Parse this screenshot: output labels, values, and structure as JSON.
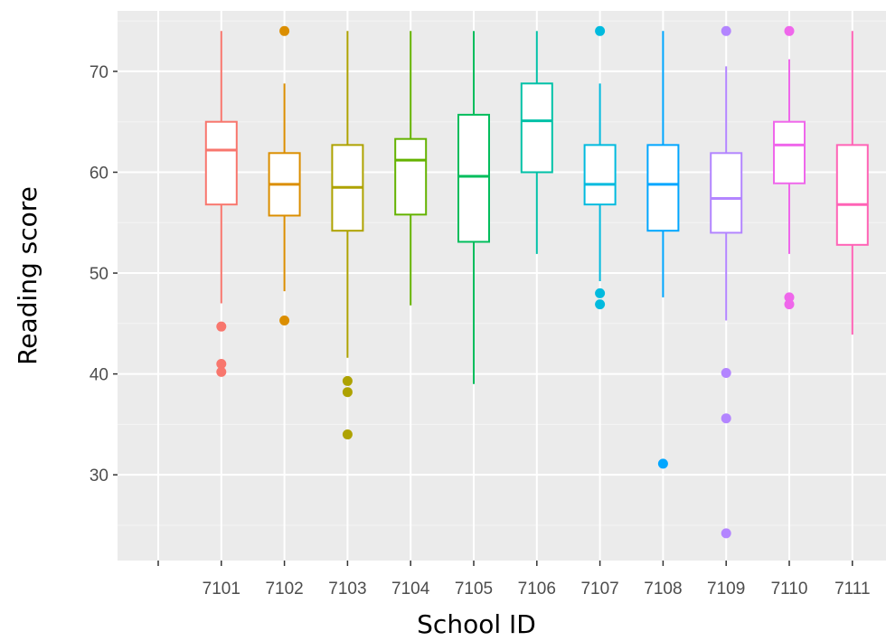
{
  "chart_data": {
    "type": "box",
    "xlabel": "School ID",
    "ylabel": "Reading score",
    "ylim": [
      21.5,
      76
    ],
    "yticks": [
      30,
      40,
      50,
      60,
      70
    ],
    "ytick_labels": [
      "30",
      "40",
      "50",
      "60",
      "70"
    ],
    "grid": true,
    "legend": "none",
    "categories": [
      "",
      "7101",
      "7102",
      "7103",
      "7104",
      "7105",
      "7106",
      "7107",
      "7108",
      "7109",
      "7110",
      "7111"
    ],
    "boxes": [
      {
        "category": "",
        "color": ""
      },
      {
        "category": "7101",
        "color": "#F8766D",
        "lower_whisker": 47,
        "q1": 56.8,
        "median": 62.2,
        "q3": 65,
        "upper_whisker": 74,
        "outliers": [
          44.7,
          41,
          40.2
        ]
      },
      {
        "category": "7102",
        "color": "#DB8E00",
        "lower_whisker": 48.2,
        "q1": 55.7,
        "median": 58.8,
        "q3": 61.9,
        "upper_whisker": 68.8,
        "outliers": [
          74,
          45.3
        ]
      },
      {
        "category": "7103",
        "color": "#AEA200",
        "lower_whisker": 41.6,
        "q1": 54.2,
        "median": 58.5,
        "q3": 62.7,
        "upper_whisker": 74,
        "outliers": [
          39.3,
          38.2,
          34
        ]
      },
      {
        "category": "7104",
        "color": "#64B200",
        "lower_whisker": 46.8,
        "q1": 55.8,
        "median": 61.2,
        "q3": 63.3,
        "upper_whisker": 74,
        "outliers": []
      },
      {
        "category": "7105",
        "color": "#00BD5C",
        "lower_whisker": 39,
        "q1": 53.1,
        "median": 59.6,
        "q3": 65.7,
        "upper_whisker": 74,
        "outliers": []
      },
      {
        "category": "7106",
        "color": "#00C1A7",
        "lower_whisker": 51.9,
        "q1": 60,
        "median": 65.1,
        "q3": 68.8,
        "upper_whisker": 74,
        "outliers": []
      },
      {
        "category": "7107",
        "color": "#00BADE",
        "lower_whisker": 49.2,
        "q1": 56.8,
        "median": 58.8,
        "q3": 62.7,
        "upper_whisker": 68.8,
        "outliers": [
          74,
          48,
          46.9
        ]
      },
      {
        "category": "7108",
        "color": "#00A6FF",
        "lower_whisker": 47.6,
        "q1": 54.2,
        "median": 58.8,
        "q3": 62.7,
        "upper_whisker": 74,
        "outliers": [
          31.1
        ]
      },
      {
        "category": "7109",
        "color": "#B385FF",
        "lower_whisker": 45.3,
        "q1": 54,
        "median": 57.4,
        "q3": 61.9,
        "upper_whisker": 70.5,
        "outliers": [
          74,
          40.1,
          35.6,
          24.2
        ]
      },
      {
        "category": "7110",
        "color": "#EF67EB",
        "lower_whisker": 51.9,
        "q1": 58.9,
        "median": 62.7,
        "q3": 65,
        "upper_whisker": 71.2,
        "outliers": [
          74,
          47.6,
          46.9
        ]
      },
      {
        "category": "7111",
        "color": "#FF63B6",
        "lower_whisker": 43.9,
        "q1": 52.8,
        "median": 56.8,
        "q3": 62.7,
        "upper_whisker": 74,
        "outliers": []
      }
    ]
  }
}
